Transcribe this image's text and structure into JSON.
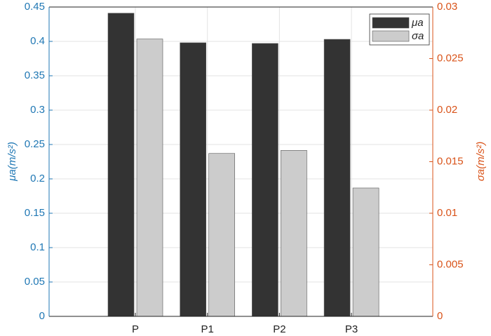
{
  "chart_data": {
    "type": "bar",
    "categories": [
      "P",
      "P1",
      "P2",
      "P3"
    ],
    "series": [
      {
        "name": "μa",
        "color": "#333333",
        "values": [
          0.441,
          0.398,
          0.397,
          0.403
        ]
      },
      {
        "name": "σa",
        "color": "#cccccc",
        "values": [
          0.0269,
          0.0158,
          0.0161,
          0.01245
        ],
        "axis": "y2"
      }
    ],
    "ylabel": "μa(m/s²)",
    "y2label": "σa(m/s²)",
    "ylim": [
      0,
      0.45
    ],
    "yticks": [
      0,
      0.05,
      0.1,
      0.15,
      0.2,
      0.25,
      0.3,
      0.35,
      0.4,
      0.45
    ],
    "y2lim": [
      0,
      0.03
    ],
    "y2ticks": [
      0,
      0.005,
      0.01,
      0.015,
      0.02,
      0.025,
      0.03
    ],
    "ycolor": "#1f77b4",
    "y2color": "#d95319",
    "grid": true,
    "legend": "top-right"
  }
}
